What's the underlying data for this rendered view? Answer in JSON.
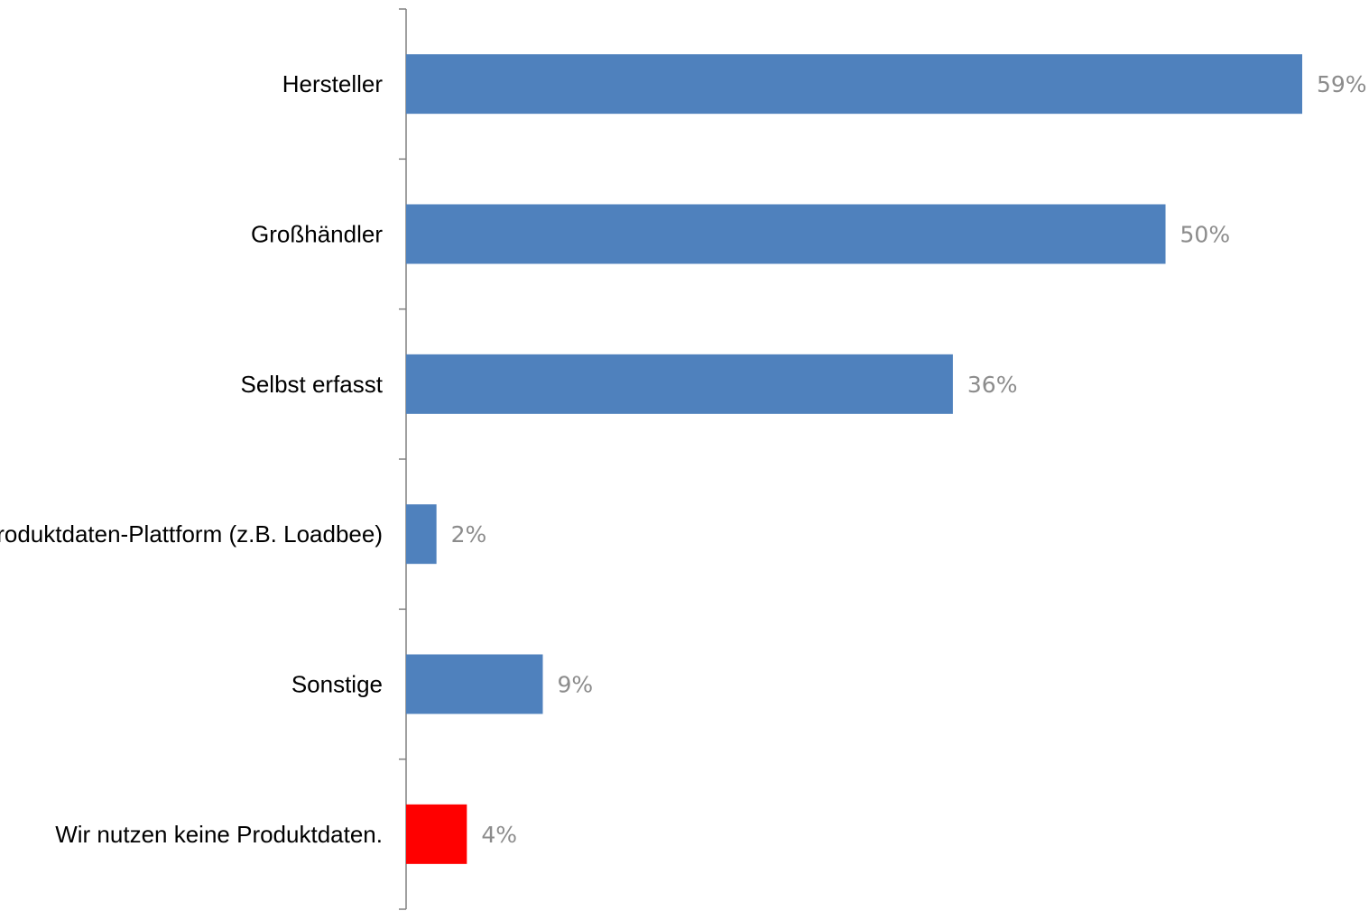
{
  "chart_data": {
    "type": "bar",
    "orientation": "horizontal",
    "categories": [
      "Hersteller",
      "Großhändler",
      "Selbst erfasst",
      "Produktdaten-Plattform (z.B. Loadbee)",
      "Sonstige",
      "Wir nutzen keine Produktdaten."
    ],
    "values": [
      59,
      50,
      36,
      2,
      9,
      4
    ],
    "value_labels": [
      "59%",
      "50%",
      "36%",
      "2%",
      "9%",
      "4%"
    ],
    "colors": [
      "#4f81bd",
      "#4f81bd",
      "#4f81bd",
      "#4f81bd",
      "#4f81bd",
      "#ff0000"
    ],
    "unit": "%",
    "xlim": [
      0,
      60
    ],
    "grid": false,
    "legend": "none"
  }
}
